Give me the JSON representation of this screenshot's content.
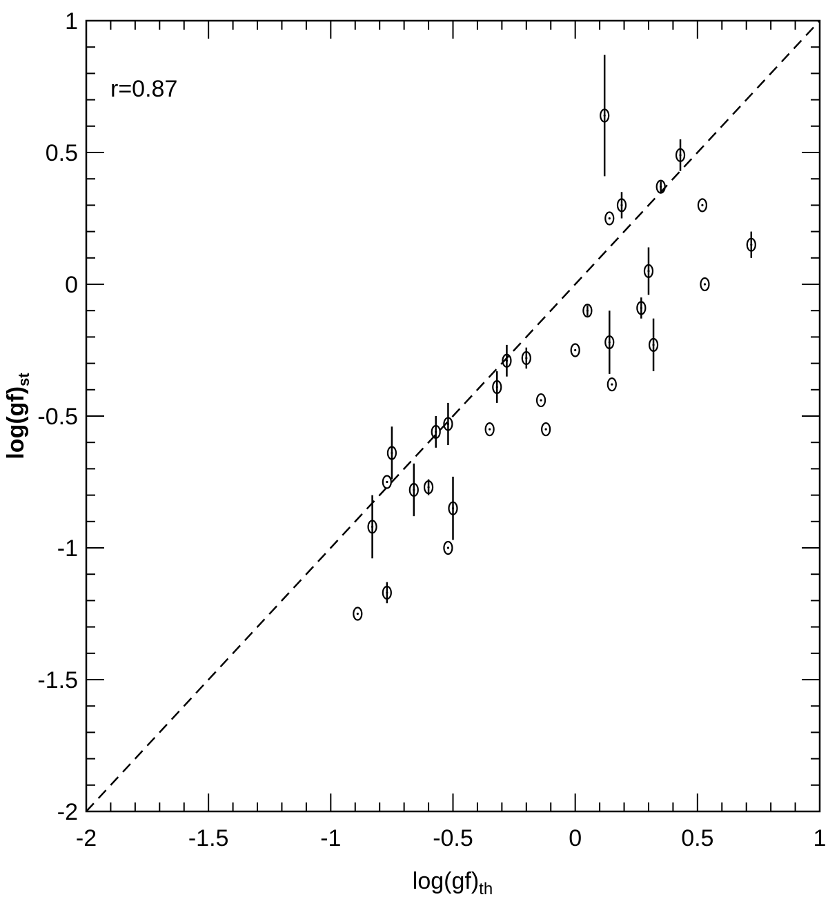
{
  "chart_data": {
    "type": "scatter",
    "xlabel": "log(gf)",
    "xlabel_sub": "th",
    "ylabel": "log(gf)",
    "ylabel_sub": "st",
    "xlim": [
      -2,
      1
    ],
    "ylim": [
      -2,
      1
    ],
    "x_ticks": [
      -2,
      -1.5,
      -1,
      -0.5,
      0,
      0.5,
      1
    ],
    "x_tick_labels": [
      "-2",
      "-1.5",
      "-1",
      "-0.5",
      "0",
      "0.5",
      "1"
    ],
    "y_ticks": [
      -2,
      -1.5,
      -1,
      -0.5,
      0,
      0.5,
      1
    ],
    "y_tick_labels": [
      "-2",
      "-1.5",
      "-1",
      "-0.5",
      "0",
      "0.5",
      "1"
    ],
    "annotation": "r=0.87",
    "grid": false,
    "reference_line": {
      "style": "dashed",
      "from": [
        -2,
        -2
      ],
      "to": [
        1,
        1
      ]
    },
    "series": [
      {
        "marker": "circle-dot",
        "points": [
          {
            "x": -0.89,
            "y": -1.25,
            "err": 0
          },
          {
            "x": -0.77,
            "y": -1.17,
            "err": 0.04
          },
          {
            "x": -0.83,
            "y": -0.92,
            "err": 0.12
          },
          {
            "x": -0.77,
            "y": -0.75,
            "err": 0
          },
          {
            "x": -0.75,
            "y": -0.64,
            "err": 0.1
          },
          {
            "x": -0.66,
            "y": -0.78,
            "err": 0.1
          },
          {
            "x": -0.6,
            "y": -0.77,
            "err": 0.03
          },
          {
            "x": -0.57,
            "y": -0.56,
            "err": 0.06
          },
          {
            "x": -0.52,
            "y": -0.53,
            "err": 0.08
          },
          {
            "x": -0.52,
            "y": -1.0,
            "err": 0
          },
          {
            "x": -0.5,
            "y": -0.85,
            "err": 0.12
          },
          {
            "x": -0.35,
            "y": -0.55,
            "err": 0
          },
          {
            "x": -0.32,
            "y": -0.39,
            "err": 0.06
          },
          {
            "x": -0.28,
            "y": -0.29,
            "err": 0.06
          },
          {
            "x": -0.2,
            "y": -0.28,
            "err": 0.04
          },
          {
            "x": -0.14,
            "y": -0.44,
            "err": 0
          },
          {
            "x": -0.12,
            "y": -0.55,
            "err": 0
          },
          {
            "x": 0.0,
            "y": -0.25,
            "err": 0
          },
          {
            "x": 0.05,
            "y": -0.1,
            "err": 0.02
          },
          {
            "x": 0.12,
            "y": 0.64,
            "err": 0.23
          },
          {
            "x": 0.14,
            "y": 0.25,
            "err": 0
          },
          {
            "x": 0.14,
            "y": -0.22,
            "err": 0.12
          },
          {
            "x": 0.15,
            "y": -0.38,
            "err": 0
          },
          {
            "x": 0.19,
            "y": 0.3,
            "err": 0.05
          },
          {
            "x": 0.27,
            "y": -0.09,
            "err": 0.04
          },
          {
            "x": 0.3,
            "y": 0.05,
            "err": 0.09
          },
          {
            "x": 0.32,
            "y": -0.23,
            "err": 0.1
          },
          {
            "x": 0.35,
            "y": 0.37,
            "err": 0.02
          },
          {
            "x": 0.43,
            "y": 0.49,
            "err": 0.06
          },
          {
            "x": 0.52,
            "y": 0.3,
            "err": 0
          },
          {
            "x": 0.53,
            "y": 0.0,
            "err": 0
          },
          {
            "x": 0.72,
            "y": 0.15,
            "err": 0.05
          }
        ]
      }
    ]
  }
}
